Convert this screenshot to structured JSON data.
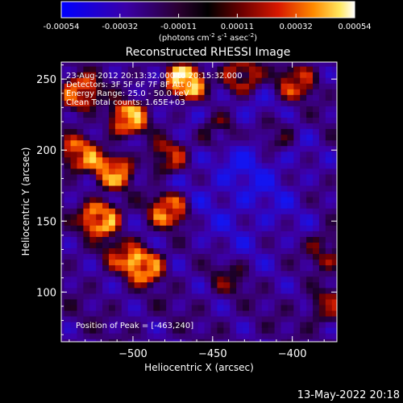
{
  "chart_data": {
    "type": "heatmap",
    "title": "Reconstructed RHESSI Image",
    "xlabel": "Heliocentric X (arcsec)",
    "ylabel": "Heliocentric Y (arcsec)",
    "xlim": [
      -545,
      -372
    ],
    "ylim": [
      65,
      262
    ],
    "xticks": [
      -500,
      -450,
      -400
    ],
    "yticks": [
      100,
      150,
      200,
      250
    ],
    "colorbar": {
      "ticks": [
        "-0.00054",
        "-0.00032",
        "-0.00011",
        "0.00011",
        "0.00032",
        "0.00054"
      ],
      "range": [
        -0.00054,
        0.00054
      ],
      "unit_label_html": "(photons cm<tspan baseline-shift='super' font-size='7'>-2</tspan> s<tspan baseline-shift='super' font-size='7'>-1</tspan> asec<tspan baseline-shift='super' font-size='7'>-2</tspan>)"
    },
    "annotations": [
      "23-Aug-2012 20:13:32.000 to 20:15:32.000",
      "Detectors: 3F 5F 6F 7F 8F  Att 0",
      "Energy Range: 25.0 - 50.0 keV",
      "Clean     Total counts: 1.65E+03"
    ],
    "peak_label": "Position of Peak = [-463,240]",
    "peak": [
      -463,
      240
    ],
    "hotspots": [
      {
        "x": -467,
        "y": 248,
        "amp": 1.25
      },
      {
        "x": -432,
        "y": 252,
        "amp": 0.8
      },
      {
        "x": -397,
        "y": 248,
        "amp": 0.7
      },
      {
        "x": -533,
        "y": 240,
        "amp": 0.9
      },
      {
        "x": -503,
        "y": 222,
        "amp": 1.0
      },
      {
        "x": -533,
        "y": 197,
        "amp": 0.85
      },
      {
        "x": -512,
        "y": 185,
        "amp": 0.9
      },
      {
        "x": -478,
        "y": 195,
        "amp": 0.65
      },
      {
        "x": -520,
        "y": 152,
        "amp": 1.1
      },
      {
        "x": -477,
        "y": 158,
        "amp": 0.95
      },
      {
        "x": -492,
        "y": 118,
        "amp": 0.95
      },
      {
        "x": -506,
        "y": 127,
        "amp": 0.55
      },
      {
        "x": -447,
        "y": 212,
        "amp": 0.55
      },
      {
        "x": -410,
        "y": 212,
        "amp": 0.45
      },
      {
        "x": -378,
        "y": 130,
        "amp": 0.5
      },
      {
        "x": -378,
        "y": 90,
        "amp": 0.5
      },
      {
        "x": -440,
        "y": 110,
        "amp": 0.35
      }
    ],
    "grid": false
  },
  "footer": {
    "date": "13-May-2022 20:18"
  }
}
